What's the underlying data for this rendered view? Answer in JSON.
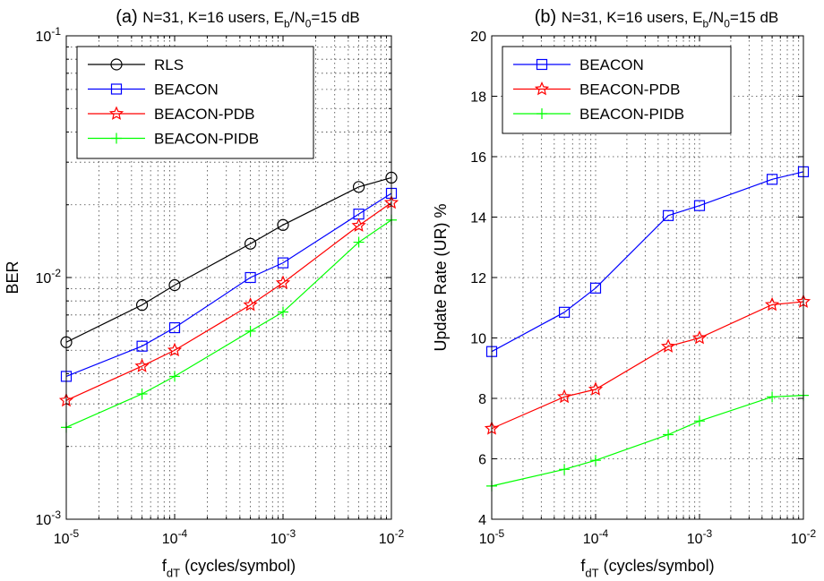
{
  "chart_data": [
    {
      "type": "line",
      "title_prefix": "(a)",
      "title": "N=31, K=16 users, E_b/N_0=15 dB",
      "xlabel": "f_dT (cycles/symbol)",
      "ylabel": "BER",
      "xscale": "log",
      "yscale": "log",
      "xlim": [
        1e-05,
        0.01
      ],
      "ylim": [
        0.001,
        0.1
      ],
      "x_ticks": [
        1e-05,
        0.0001,
        0.001,
        0.01
      ],
      "x_tick_labels": [
        "10^-5",
        "10^-4",
        "10^-3",
        "10^-2"
      ],
      "y_ticks": [
        0.001,
        0.01,
        0.1
      ],
      "y_tick_labels": [
        "10^-3",
        "10^-2",
        "10^-1"
      ],
      "grid": true,
      "legend_position": "top-left",
      "x": [
        1e-05,
        5e-05,
        0.0001,
        0.0005,
        0.001,
        0.005,
        0.01
      ],
      "series": [
        {
          "name": "RLS",
          "color": "#000000",
          "marker": "circle",
          "values": [
            0.0054,
            0.0077,
            0.0093,
            0.0138,
            0.0165,
            0.0237,
            0.0259
          ]
        },
        {
          "name": "BEACON",
          "color": "#0000ff",
          "marker": "square",
          "values": [
            0.0039,
            0.0052,
            0.0062,
            0.01,
            0.0115,
            0.0183,
            0.0223
          ]
        },
        {
          "name": "BEACON-PDB",
          "color": "#ff0000",
          "marker": "star",
          "values": [
            0.0031,
            0.0043,
            0.005,
            0.0077,
            0.0095,
            0.0164,
            0.0204
          ]
        },
        {
          "name": "BEACON-PIDB",
          "color": "#00ff00",
          "marker": "plus",
          "values": [
            0.0024,
            0.0033,
            0.0039,
            0.006,
            0.0072,
            0.014,
            0.0173
          ]
        }
      ]
    },
    {
      "type": "line",
      "title_prefix": "(b)",
      "title": "N=31, K=16 users, E_b/N_0=15 dB",
      "xlabel": "f_dT (cycles/symbol)",
      "ylabel": "Update Rate (UR) %",
      "xscale": "log",
      "yscale": "linear",
      "xlim": [
        1e-05,
        0.01
      ],
      "ylim": [
        4,
        20
      ],
      "x_ticks": [
        1e-05,
        0.0001,
        0.001,
        0.01
      ],
      "x_tick_labels": [
        "10^-5",
        "10^-4",
        "10^-3",
        "10^-2"
      ],
      "y_ticks": [
        4,
        6,
        8,
        10,
        12,
        14,
        16,
        18,
        20
      ],
      "y_tick_labels": [
        "4",
        "6",
        "8",
        "10",
        "12",
        "14",
        "16",
        "18",
        "20"
      ],
      "grid": true,
      "legend_position": "top-left",
      "x": [
        1e-05,
        5e-05,
        0.0001,
        0.0005,
        0.001,
        0.005,
        0.01
      ],
      "series": [
        {
          "name": "BEACON",
          "color": "#0000ff",
          "marker": "square",
          "values": [
            9.55,
            10.85,
            11.65,
            14.05,
            14.38,
            15.25,
            15.5
          ]
        },
        {
          "name": "BEACON-PDB",
          "color": "#ff0000",
          "marker": "star",
          "values": [
            7.0,
            8.05,
            8.3,
            9.72,
            10.0,
            11.1,
            11.2
          ]
        },
        {
          "name": "BEACON-PIDB",
          "color": "#00ff00",
          "marker": "plus",
          "values": [
            5.1,
            5.65,
            5.95,
            6.8,
            7.25,
            8.05,
            8.1
          ]
        }
      ]
    }
  ]
}
